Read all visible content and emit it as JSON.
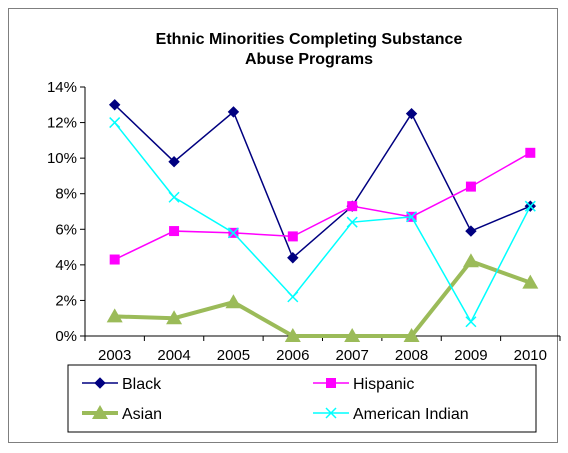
{
  "chart_data": {
    "type": "line",
    "title_lines": [
      "Ethnic Minorities Completing Substance",
      "Abuse Programs"
    ],
    "categories": [
      "2003",
      "2004",
      "2005",
      "2006",
      "2007",
      "2008",
      "2009",
      "2010"
    ],
    "ylim": [
      0,
      14
    ],
    "y_ticks": [
      0,
      2,
      4,
      6,
      8,
      10,
      12,
      14
    ],
    "y_tick_labels": [
      "0%",
      "2%",
      "4%",
      "6%",
      "8%",
      "10%",
      "12%",
      "14%"
    ],
    "grid": false,
    "legend_position": "bottom",
    "series": [
      {
        "name": "Black",
        "color": "#000080",
        "marker": "diamond",
        "line_width": 1.5,
        "values": [
          13.0,
          9.8,
          12.6,
          4.4,
          7.3,
          12.5,
          5.9,
          7.3
        ]
      },
      {
        "name": "Hispanic",
        "color": "#ff00ff",
        "marker": "square",
        "line_width": 1.5,
        "values": [
          4.3,
          5.9,
          5.8,
          5.6,
          7.3,
          6.7,
          8.4,
          10.3
        ]
      },
      {
        "name": "Asian",
        "color": "#9bbb59",
        "marker": "triangle",
        "line_width": 4,
        "values": [
          1.1,
          1.0,
          1.9,
          0.0,
          0.0,
          0.0,
          4.2,
          3.0
        ]
      },
      {
        "name": "American Indian",
        "color": "#00ffff",
        "marker": "x",
        "line_width": 1.5,
        "values": [
          12.0,
          7.8,
          5.8,
          2.2,
          6.4,
          6.7,
          0.8,
          7.3
        ]
      }
    ]
  }
}
